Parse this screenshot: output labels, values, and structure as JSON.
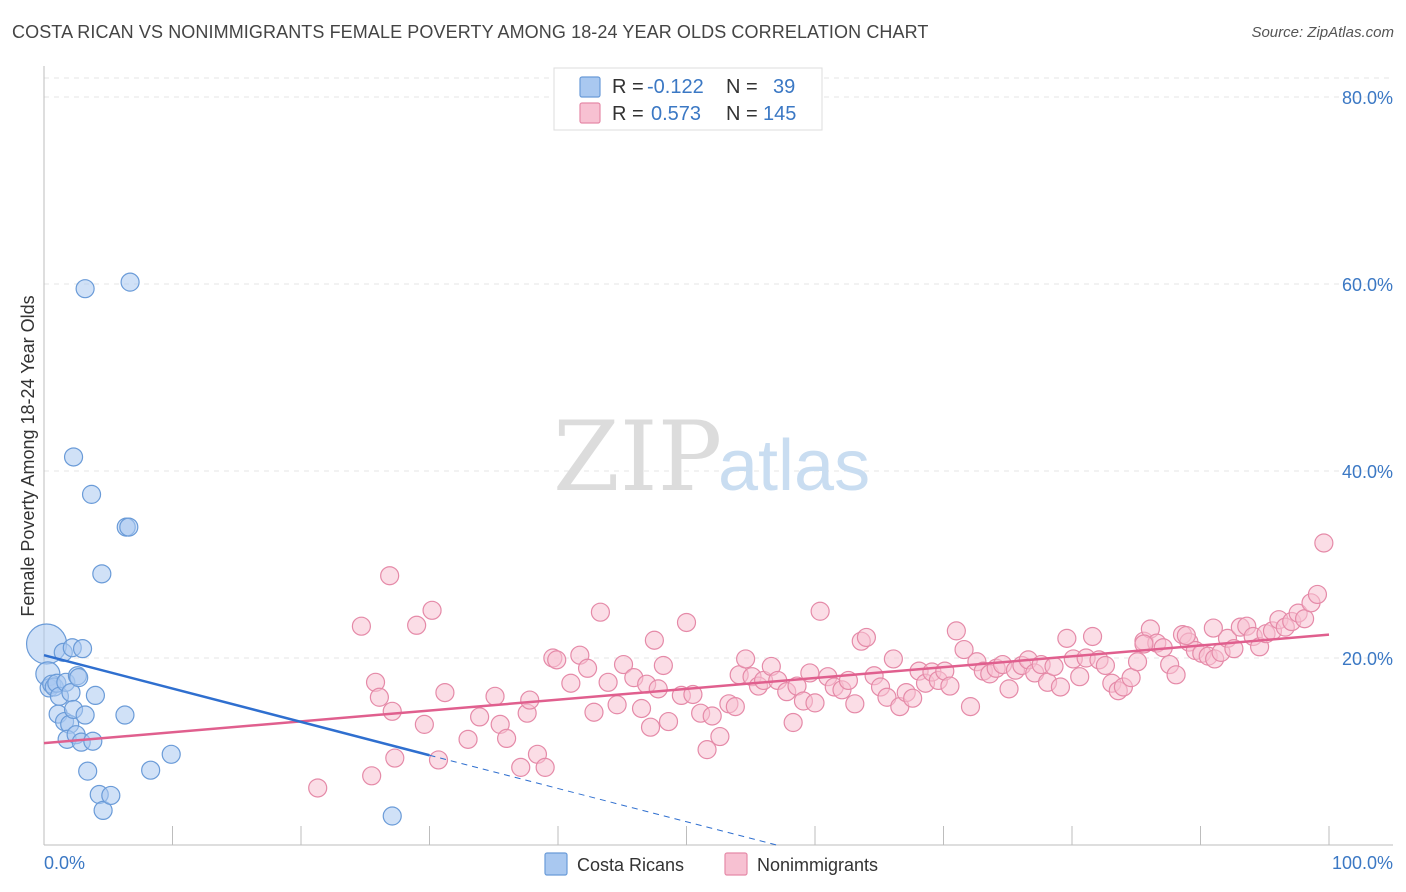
{
  "title": "COSTA RICAN VS NONIMMIGRANTS FEMALE POVERTY AMONG 18-24 YEAR OLDS CORRELATION CHART",
  "source": "Source: ZipAtlas.com",
  "watermark": {
    "zip": "ZIP",
    "atlas": "atlas"
  },
  "legend_top": [
    {
      "r_label": "R =",
      "r_value": "-0.122",
      "n_label": "N =",
      "n_value": "39",
      "color": "#a9c8f0",
      "border": "#6a9bd8"
    },
    {
      "r_label": "R =",
      "r_value": "0.573",
      "n_label": "N =",
      "n_value": "145",
      "color": "#f7c1d2",
      "border": "#e58aa8"
    }
  ],
  "legend_bottom": [
    {
      "label": "Costa Ricans",
      "color": "#a9c8f0",
      "border": "#6a9bd8"
    },
    {
      "label": "Nonimmigrants",
      "color": "#f7c1d2",
      "border": "#e58aa8"
    }
  ],
  "chart_data": {
    "type": "scatter",
    "ylabel": "Female Poverty Among 18-24 Year Olds",
    "xlabel": "",
    "xlim": [
      0,
      105
    ],
    "ylim": [
      0,
      82
    ],
    "x_tick_labels": [
      {
        "value": 0,
        "label": "0.0%"
      },
      {
        "value": 100,
        "label": "100.0%"
      }
    ],
    "x_minor_ticks": [
      0,
      10,
      20,
      30,
      40,
      50,
      60,
      70,
      80,
      90,
      100
    ],
    "y_tick_labels": [
      {
        "value": 20,
        "label": "20.0%"
      },
      {
        "value": 40,
        "label": "40.0%"
      },
      {
        "value": 60,
        "label": "60.0%"
      },
      {
        "value": 80,
        "label": "80.0%"
      }
    ],
    "gridlines": "horizontal dashed",
    "series": [
      {
        "name": "Costa Ricans",
        "color": "#a9c8f0",
        "stroke": "#6a9bd8",
        "points": [
          [
            0.2,
            21.5
          ],
          [
            0.3,
            18.3
          ],
          [
            0.4,
            16.8
          ],
          [
            0.6,
            17.2
          ],
          [
            0.8,
            16.9
          ],
          [
            1.0,
            17.3
          ],
          [
            1.2,
            15.9
          ],
          [
            1.5,
            20.6
          ],
          [
            1.7,
            17.4
          ],
          [
            1.1,
            14.0
          ],
          [
            1.6,
            13.2
          ],
          [
            2.0,
            12.9
          ],
          [
            1.8,
            11.3
          ],
          [
            2.1,
            16.3
          ],
          [
            2.3,
            14.5
          ],
          [
            2.2,
            21.1
          ],
          [
            2.6,
            18.1
          ],
          [
            2.7,
            17.9
          ],
          [
            2.5,
            11.8
          ],
          [
            3.0,
            21.0
          ],
          [
            2.9,
            11.0
          ],
          [
            3.2,
            13.9
          ],
          [
            3.4,
            7.9
          ],
          [
            3.8,
            11.1
          ],
          [
            4.0,
            16.0
          ],
          [
            4.3,
            5.4
          ],
          [
            4.6,
            3.7
          ],
          [
            5.2,
            5.3
          ],
          [
            6.4,
            34.0
          ],
          [
            6.6,
            34.0
          ],
          [
            6.3,
            13.9
          ],
          [
            8.3,
            8.0
          ],
          [
            9.9,
            9.7
          ],
          [
            2.3,
            41.5
          ],
          [
            3.7,
            37.5
          ],
          [
            4.5,
            29.0
          ],
          [
            3.2,
            59.5
          ],
          [
            6.7,
            60.2
          ],
          [
            27.1,
            3.1
          ]
        ],
        "trend": {
          "x0": 0,
          "y0": 20.3,
          "x1": 30,
          "y1": 9.6,
          "dash_to_x": 57,
          "dash_to_y": 0
        }
      },
      {
        "name": "Nonimmigrants",
        "color": "#f7c1d2",
        "stroke": "#e58aa8",
        "points": [
          [
            21.3,
            6.1
          ],
          [
            25.5,
            7.4
          ],
          [
            27.3,
            9.3
          ],
          [
            30.7,
            9.1
          ],
          [
            26.9,
            28.8
          ],
          [
            24.7,
            23.4
          ],
          [
            25.8,
            17.4
          ],
          [
            26.1,
            15.8
          ],
          [
            27.1,
            14.3
          ],
          [
            29.0,
            23.5
          ],
          [
            29.6,
            12.9
          ],
          [
            30.2,
            25.1
          ],
          [
            31.2,
            16.3
          ],
          [
            33.0,
            11.3
          ],
          [
            33.9,
            13.7
          ],
          [
            35.1,
            15.9
          ],
          [
            35.5,
            12.9
          ],
          [
            36.0,
            11.4
          ],
          [
            37.1,
            8.3
          ],
          [
            37.6,
            14.1
          ],
          [
            37.8,
            15.5
          ],
          [
            38.4,
            9.7
          ],
          [
            39.0,
            8.3
          ],
          [
            39.6,
            20.0
          ],
          [
            39.9,
            19.8
          ],
          [
            41.0,
            17.3
          ],
          [
            41.7,
            20.3
          ],
          [
            42.3,
            18.9
          ],
          [
            42.8,
            14.2
          ],
          [
            43.3,
            24.9
          ],
          [
            43.9,
            17.4
          ],
          [
            44.6,
            15.0
          ],
          [
            45.1,
            19.3
          ],
          [
            45.9,
            17.9
          ],
          [
            46.5,
            14.6
          ],
          [
            46.9,
            17.2
          ],
          [
            47.2,
            12.6
          ],
          [
            47.5,
            21.9
          ],
          [
            47.8,
            16.7
          ],
          [
            48.2,
            19.2
          ],
          [
            48.6,
            13.2
          ],
          [
            49.6,
            16.0
          ],
          [
            50.0,
            23.8
          ],
          [
            50.5,
            16.1
          ],
          [
            51.1,
            14.1
          ],
          [
            51.6,
            10.2
          ],
          [
            52.0,
            13.8
          ],
          [
            52.6,
            11.6
          ],
          [
            53.3,
            15.1
          ],
          [
            53.8,
            14.8
          ],
          [
            54.1,
            18.2
          ],
          [
            54.6,
            19.9
          ],
          [
            55.1,
            18.0
          ],
          [
            55.6,
            17.0
          ],
          [
            56.0,
            17.6
          ],
          [
            56.6,
            19.1
          ],
          [
            57.1,
            17.6
          ],
          [
            57.8,
            16.4
          ],
          [
            58.3,
            13.1
          ],
          [
            58.6,
            17.0
          ],
          [
            59.1,
            15.4
          ],
          [
            59.6,
            18.4
          ],
          [
            60.0,
            15.2
          ],
          [
            60.4,
            25.0
          ],
          [
            61.0,
            18.0
          ],
          [
            61.5,
            16.9
          ],
          [
            62.1,
            16.6
          ],
          [
            62.6,
            17.6
          ],
          [
            63.1,
            15.1
          ],
          [
            63.6,
            21.8
          ],
          [
            64.0,
            22.2
          ],
          [
            64.6,
            18.1
          ],
          [
            65.1,
            16.9
          ],
          [
            65.6,
            15.8
          ],
          [
            66.1,
            19.9
          ],
          [
            66.6,
            14.8
          ],
          [
            67.1,
            16.3
          ],
          [
            67.6,
            15.7
          ],
          [
            68.1,
            18.6
          ],
          [
            68.6,
            17.3
          ],
          [
            69.1,
            18.5
          ],
          [
            69.6,
            17.6
          ],
          [
            70.1,
            18.6
          ],
          [
            70.5,
            17.0
          ],
          [
            71.0,
            22.9
          ],
          [
            71.6,
            20.9
          ],
          [
            72.1,
            14.8
          ],
          [
            72.6,
            19.6
          ],
          [
            73.1,
            18.6
          ],
          [
            73.6,
            18.3
          ],
          [
            74.1,
            18.9
          ],
          [
            74.6,
            19.3
          ],
          [
            75.1,
            16.7
          ],
          [
            75.6,
            18.7
          ],
          [
            76.1,
            19.2
          ],
          [
            76.6,
            19.8
          ],
          [
            77.1,
            18.4
          ],
          [
            77.6,
            19.3
          ],
          [
            78.1,
            17.4
          ],
          [
            78.6,
            19.1
          ],
          [
            79.1,
            16.9
          ],
          [
            79.6,
            22.1
          ],
          [
            80.1,
            19.9
          ],
          [
            80.6,
            18.0
          ],
          [
            81.1,
            20.0
          ],
          [
            81.6,
            22.3
          ],
          [
            82.1,
            19.8
          ],
          [
            82.6,
            19.2
          ],
          [
            83.1,
            17.3
          ],
          [
            83.6,
            16.5
          ],
          [
            84.0,
            16.9
          ],
          [
            84.6,
            17.9
          ],
          [
            85.1,
            19.6
          ],
          [
            85.6,
            21.8
          ],
          [
            86.1,
            23.1
          ],
          [
            86.6,
            21.6
          ],
          [
            87.1,
            21.1
          ],
          [
            87.6,
            19.3
          ],
          [
            88.1,
            18.2
          ],
          [
            88.6,
            22.5
          ],
          [
            89.1,
            21.7
          ],
          [
            89.6,
            20.8
          ],
          [
            90.1,
            20.5
          ],
          [
            90.6,
            20.2
          ],
          [
            91.1,
            19.9
          ],
          [
            91.6,
            20.6
          ],
          [
            92.1,
            22.1
          ],
          [
            92.6,
            21.0
          ],
          [
            93.1,
            23.3
          ],
          [
            93.6,
            23.4
          ],
          [
            94.1,
            22.3
          ],
          [
            94.6,
            21.2
          ],
          [
            95.1,
            22.6
          ],
          [
            95.6,
            22.9
          ],
          [
            96.1,
            24.1
          ],
          [
            96.6,
            23.3
          ],
          [
            97.1,
            23.9
          ],
          [
            97.6,
            24.8
          ],
          [
            98.1,
            24.2
          ],
          [
            98.6,
            25.9
          ],
          [
            99.1,
            26.8
          ],
          [
            99.6,
            32.3
          ],
          [
            91.0,
            23.2
          ],
          [
            88.9,
            22.4
          ],
          [
            85.6,
            21.5
          ]
        ],
        "trend": {
          "x0": 0,
          "y0": 10.9,
          "x1": 100,
          "y1": 22.5
        }
      }
    ]
  }
}
